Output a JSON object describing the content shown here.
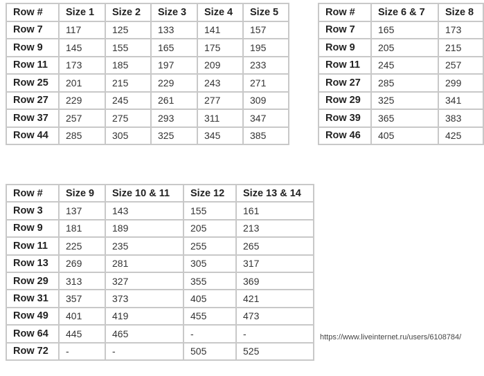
{
  "tables": [
    {
      "headers": [
        "Row #",
        "Size 1",
        "Size 2",
        "Size 3",
        "Size 4",
        "Size 5"
      ],
      "rows": [
        [
          "Row 7",
          "117",
          "125",
          "133",
          "141",
          "157"
        ],
        [
          "Row 9",
          "145",
          "155",
          "165",
          "175",
          "195"
        ],
        [
          "Row 11",
          "173",
          "185",
          "197",
          "209",
          "233"
        ],
        [
          "Row 25",
          "201",
          "215",
          "229",
          "243",
          "271"
        ],
        [
          "Row 27",
          "229",
          "245",
          "261",
          "277",
          "309"
        ],
        [
          "Row 37",
          "257",
          "275",
          "293",
          "311",
          "347"
        ],
        [
          "Row 44",
          "285",
          "305",
          "325",
          "345",
          "385"
        ]
      ]
    },
    {
      "headers": [
        "Row #",
        "Size 6 & 7",
        "Size 8"
      ],
      "rows": [
        [
          "Row 7",
          "165",
          "173"
        ],
        [
          "Row 9",
          "205",
          "215"
        ],
        [
          "Row 11",
          "245",
          "257"
        ],
        [
          "Row 27",
          "285",
          "299"
        ],
        [
          "Row 29",
          "325",
          "341"
        ],
        [
          "Row 39",
          "365",
          "383"
        ],
        [
          "Row 46",
          "405",
          "425"
        ]
      ]
    },
    {
      "headers": [
        "Row #",
        "Size 9",
        "Size 10 & 11",
        "Size 12",
        "Size 13 & 14"
      ],
      "rows": [
        [
          "Row 3",
          "137",
          "143",
          "155",
          "161"
        ],
        [
          "Row 9",
          "181",
          "189",
          "205",
          "213"
        ],
        [
          "Row 11",
          "225",
          "235",
          "255",
          "265"
        ],
        [
          "Row 13",
          "269",
          "281",
          "305",
          "317"
        ],
        [
          "Row 29",
          "313",
          "327",
          "355",
          "369"
        ],
        [
          "Row 31",
          "357",
          "373",
          "405",
          "421"
        ],
        [
          "Row 49",
          "401",
          "419",
          "455",
          "473"
        ],
        [
          "Row 64",
          "445",
          "465",
          "-",
          "-"
        ],
        [
          "Row 72",
          "-",
          "-",
          "505",
          "525"
        ]
      ]
    }
  ],
  "watermark": "https://www.liveinternet.ru/users/6108784/"
}
